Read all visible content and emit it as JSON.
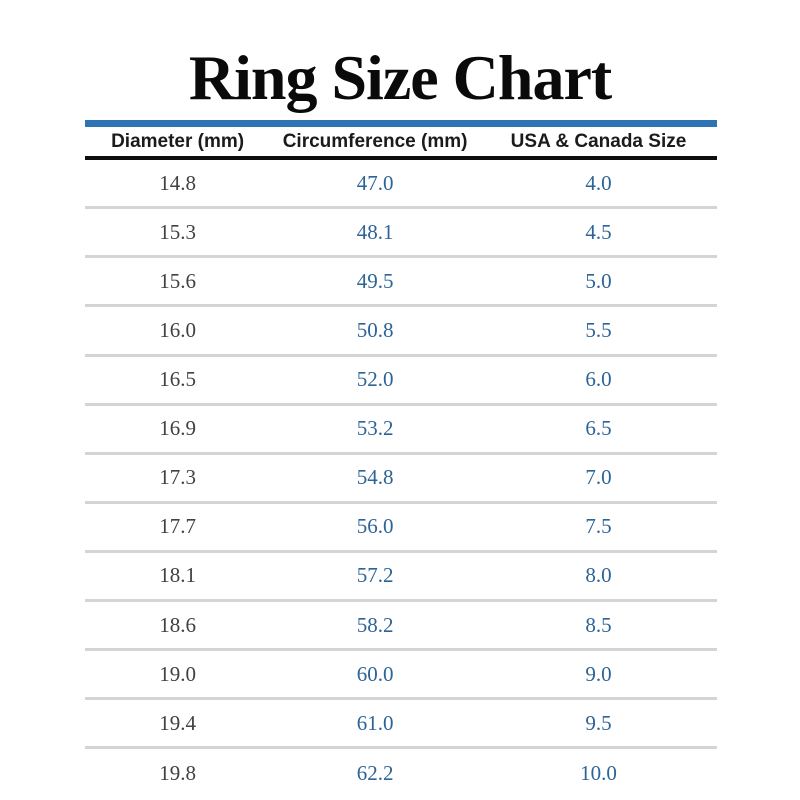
{
  "page": {
    "title": "Ring Size Chart"
  },
  "table": {
    "columns": [
      "Diameter (mm)",
      "Circumference (mm)",
      "USA & Canada Size"
    ],
    "rows": [
      [
        "14.8",
        "47.0",
        "4.0"
      ],
      [
        "15.3",
        "48.1",
        "4.5"
      ],
      [
        "15.6",
        "49.5",
        "5.0"
      ],
      [
        "16.0",
        "50.8",
        "5.5"
      ],
      [
        "16.5",
        "52.0",
        "6.0"
      ],
      [
        "16.9",
        "53.2",
        "6.5"
      ],
      [
        "17.3",
        "54.8",
        "7.0"
      ],
      [
        "17.7",
        "56.0",
        "7.5"
      ],
      [
        "18.1",
        "57.2",
        "8.0"
      ],
      [
        "18.6",
        "58.2",
        "8.5"
      ],
      [
        "19.0",
        "60.0",
        "9.0"
      ],
      [
        "19.4",
        "61.0",
        "9.5"
      ],
      [
        "19.8",
        "62.2",
        "10.0"
      ]
    ]
  },
  "colors": {
    "accent_line_blue": "#2e74b5",
    "value_blue": "#2d6497",
    "diameter_gray": "#414141",
    "separator_gray": "#d4d4d4",
    "header_rule_black": "#0d0d0d",
    "title_black": "#0a0a0a",
    "background": "#ffffff"
  },
  "chart_data": {
    "type": "table",
    "title": "Ring Size Chart",
    "columns": [
      "Diameter (mm)",
      "Circumference (mm)",
      "USA & Canada Size"
    ],
    "rows": [
      [
        14.8,
        47.0,
        4.0
      ],
      [
        15.3,
        48.1,
        4.5
      ],
      [
        15.6,
        49.5,
        5.0
      ],
      [
        16.0,
        50.8,
        5.5
      ],
      [
        16.5,
        52.0,
        6.0
      ],
      [
        16.9,
        53.2,
        6.5
      ],
      [
        17.3,
        54.8,
        7.0
      ],
      [
        17.7,
        56.0,
        7.5
      ],
      [
        18.1,
        57.2,
        8.0
      ],
      [
        18.6,
        58.2,
        8.5
      ],
      [
        19.0,
        60.0,
        9.0
      ],
      [
        19.4,
        61.0,
        9.5
      ],
      [
        19.8,
        62.2,
        10.0
      ]
    ],
    "layout_hints": {
      "column_value_colors": [
        "#414141",
        "#2d6497",
        "#2d6497"
      ],
      "row_separators": true,
      "header_top_rule_color": "#2e74b5",
      "header_bottom_rule_color": "#0d0d0d"
    }
  }
}
